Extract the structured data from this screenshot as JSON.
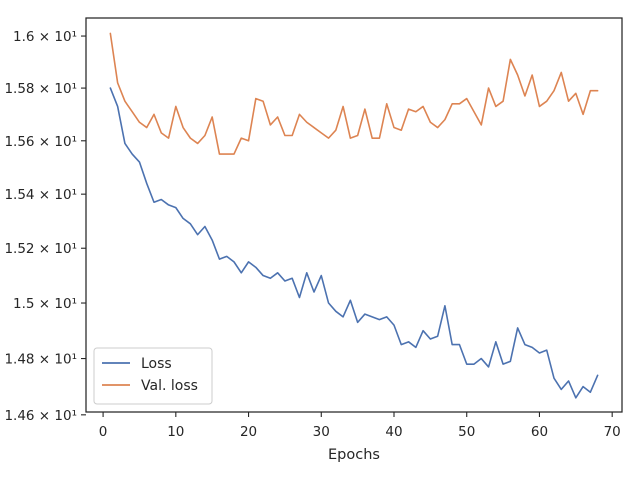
{
  "chart_data": {
    "type": "line",
    "title": "",
    "xlabel": "Epochs",
    "ylabel": "",
    "xlim": [
      -2.35,
      71.35
    ],
    "ylim": [
      14.61,
      16.07
    ],
    "log_y": true,
    "grid": false,
    "legend_position": "lower-left",
    "x_ticks": [
      0,
      10,
      20,
      30,
      40,
      50,
      60,
      70
    ],
    "x_tick_labels": [
      "0",
      "10",
      "20",
      "30",
      "40",
      "50",
      "60",
      "70"
    ],
    "y_ticks": [
      14.6,
      14.8,
      15.0,
      15.2,
      15.4,
      15.6,
      15.8,
      16.0
    ],
    "y_tick_labels": [
      "1.46 × 10¹",
      "1.48 × 10¹",
      "1.5 × 10¹",
      "1.52 × 10¹",
      "1.54 × 10¹",
      "1.56 × 10¹",
      "1.58 × 10¹",
      "1.6 × 10¹"
    ],
    "x": [
      1,
      2,
      3,
      4,
      5,
      6,
      7,
      8,
      9,
      10,
      11,
      12,
      13,
      14,
      15,
      16,
      17,
      18,
      19,
      20,
      21,
      22,
      23,
      24,
      25,
      26,
      27,
      28,
      29,
      30,
      31,
      32,
      33,
      34,
      35,
      36,
      37,
      38,
      39,
      40,
      41,
      42,
      43,
      44,
      45,
      46,
      47,
      48,
      49,
      50,
      51,
      52,
      53,
      54,
      55,
      56,
      57,
      58,
      59,
      60,
      61,
      62,
      63,
      64,
      65,
      66,
      67,
      68
    ],
    "series": [
      {
        "name": "Loss",
        "color": "#4c72b0",
        "values": [
          15.8,
          15.73,
          15.59,
          15.55,
          15.52,
          15.44,
          15.37,
          15.38,
          15.36,
          15.35,
          15.31,
          15.29,
          15.25,
          15.28,
          15.23,
          15.16,
          15.17,
          15.15,
          15.11,
          15.15,
          15.13,
          15.1,
          15.09,
          15.11,
          15.08,
          15.09,
          15.02,
          15.11,
          15.04,
          15.1,
          15.0,
          14.97,
          14.95,
          15.01,
          14.93,
          14.96,
          14.95,
          14.94,
          14.95,
          14.92,
          14.85,
          14.86,
          14.84,
          14.9,
          14.87,
          14.88,
          14.99,
          14.85,
          14.85,
          14.78,
          14.78,
          14.8,
          14.77,
          14.86,
          14.78,
          14.79,
          14.91,
          14.85,
          14.84,
          14.82,
          14.83,
          14.73,
          14.69,
          14.72,
          14.66,
          14.7,
          14.68,
          14.74
        ]
      },
      {
        "name": "Val. loss",
        "color": "#dd8452",
        "values": [
          16.01,
          15.82,
          15.75,
          15.71,
          15.67,
          15.65,
          15.7,
          15.63,
          15.61,
          15.73,
          15.65,
          15.61,
          15.59,
          15.62,
          15.69,
          15.55,
          15.55,
          15.55,
          15.61,
          15.6,
          15.76,
          15.75,
          15.66,
          15.69,
          15.62,
          15.62,
          15.7,
          15.67,
          15.65,
          15.63,
          15.61,
          15.64,
          15.73,
          15.61,
          15.62,
          15.72,
          15.61,
          15.61,
          15.74,
          15.65,
          15.64,
          15.72,
          15.71,
          15.73,
          15.67,
          15.65,
          15.68,
          15.74,
          15.74,
          15.76,
          15.71,
          15.66,
          15.8,
          15.73,
          15.75,
          15.91,
          15.85,
          15.77,
          15.85,
          15.73,
          15.75,
          15.79,
          15.86,
          15.75,
          15.78,
          15.7,
          15.79,
          15.79
        ]
      }
    ]
  }
}
